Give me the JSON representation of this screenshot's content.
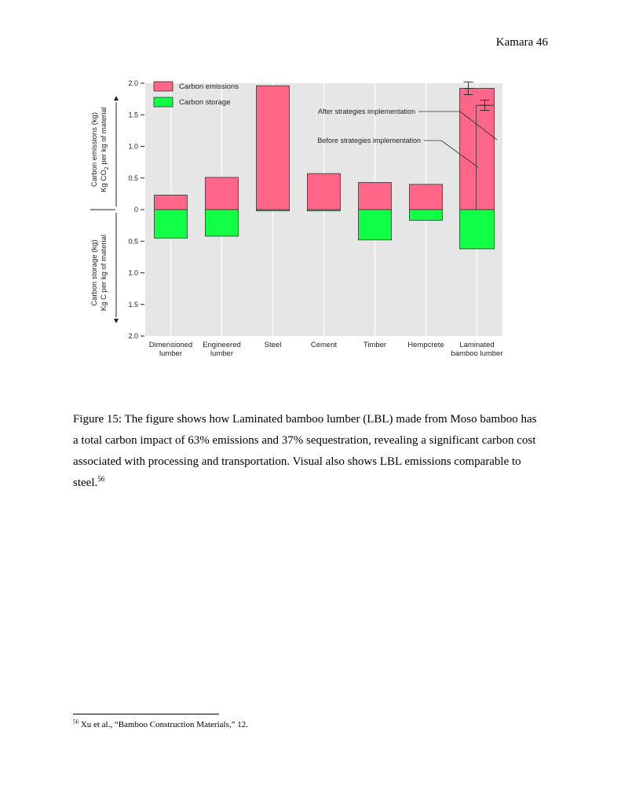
{
  "header": {
    "running_head": "Kamara 46"
  },
  "chart_data": {
    "type": "bar",
    "categories": [
      [
        "Dimensioned",
        "lumber"
      ],
      [
        "Engineered",
        "lumber"
      ],
      [
        "Steel"
      ],
      [
        "Cement"
      ],
      [
        "Timber"
      ],
      [
        "Hempcrete"
      ],
      [
        "Laminated",
        "bamboo lumber"
      ]
    ],
    "series": [
      {
        "name": "Carbon emissions",
        "color": "#ff6688",
        "values": [
          0.23,
          0.51,
          1.96,
          0.57,
          0.43,
          0.4,
          1.92
        ]
      },
      {
        "name": "Carbon storage",
        "color": "#11ff44",
        "values": [
          0.45,
          0.42,
          0.02,
          0.02,
          0.48,
          0.17,
          0.62
        ]
      }
    ],
    "lbl_after_emissions": 1.65,
    "error_bars": [
      {
        "value": 1.92,
        "low": 1.82,
        "high": 2.02
      },
      {
        "value": 1.65,
        "low": 1.57,
        "high": 1.73
      }
    ],
    "yticks_upper": [
      "2.0",
      "1.5",
      "1.0",
      "0.5",
      "0"
    ],
    "yticks_lower": [
      "0.5",
      "1.0",
      "1.5",
      "2.0"
    ],
    "ylim": [
      -2.0,
      2.0
    ],
    "ylabel_upper": [
      "Carbon emissions (kg)",
      "Kg CO",
      "2",
      " per kg of material"
    ],
    "ylabel_lower": [
      "Carbon storage (kg)",
      "Kg C per kg of material"
    ],
    "annotations": {
      "after": "After strategies implementation",
      "before": "Before strategies implementation"
    },
    "grid": true,
    "legend_position": "top-left"
  },
  "caption": {
    "text": "Figure 15: The figure shows how Laminated bamboo lumber (LBL) made from Moso bamboo has a total carbon impact of 63% emissions and 37% sequestration, revealing a significant carbon cost associated with processing and transportation. Visual also shows LBL emissions comparable to steel.",
    "footnote_ref": "56"
  },
  "footnote": {
    "number": "56",
    "text": "Xu et al., “Bamboo Construction Materials,” 12."
  }
}
